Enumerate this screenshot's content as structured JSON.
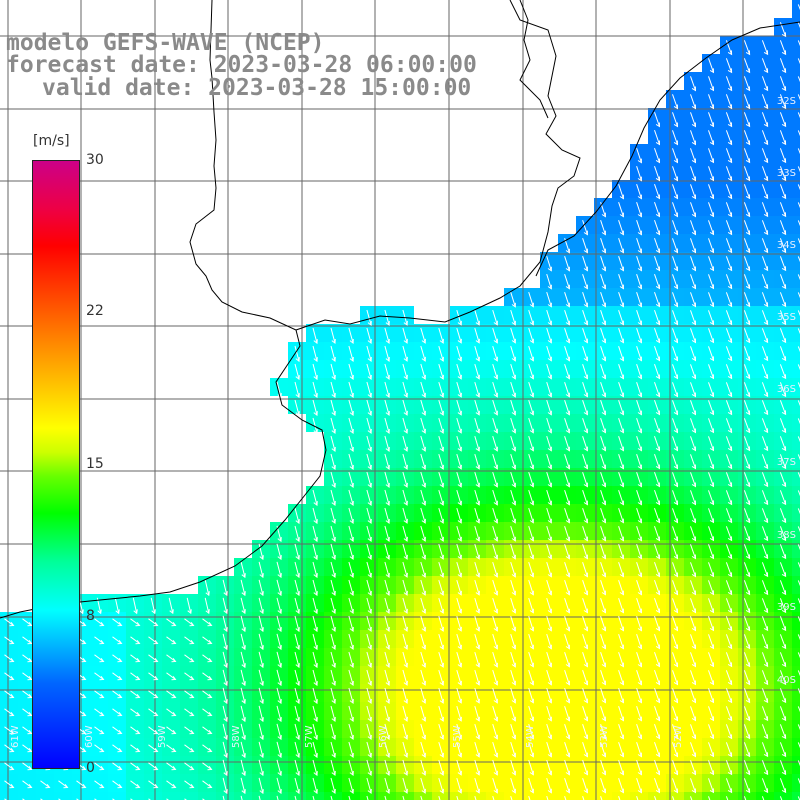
{
  "title": {
    "line1": "modelo GEFS-WAVE (NCEP)",
    "line2": "forecast date: 2023-03-28 06:00:00",
    "line3": "valid date: 2023-03-28 15:00:00"
  },
  "colorbar": {
    "unit": "[m/s]",
    "min": 0,
    "max": 30,
    "ticks": [
      "30",
      "22",
      "15",
      "8",
      "0"
    ],
    "tick_values": [
      30,
      22,
      15,
      8,
      0
    ],
    "colors": [
      "#0000ff",
      "#00ccff",
      "#00ff00",
      "#ffff00",
      "#ff0000",
      "#cc0088"
    ]
  },
  "lat_labels": [
    "32S",
    "33S",
    "34S",
    "35S",
    "36S",
    "37S",
    "38S",
    "39S",
    "40S"
  ],
  "lon_labels": [
    "61W",
    "60W",
    "59W",
    "58W",
    "57W",
    "56W",
    "55W",
    "54W",
    "53W",
    "52W"
  ],
  "map": {
    "land_color": "#ffffff",
    "coast_color": "#000000",
    "grid_color": "#666666",
    "arrow_color": "#ffffff",
    "field": "wind speed with direction arrows"
  }
}
